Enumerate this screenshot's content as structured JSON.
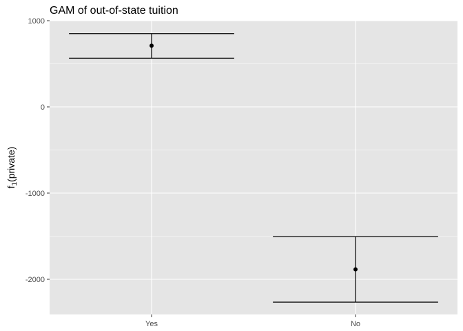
{
  "chart_data": {
    "type": "errorbar",
    "title": "GAM of out-of-state tuition",
    "xlabel": "",
    "ylabel": "f₁(private)",
    "ylabel_main": "f",
    "ylabel_sub": "1",
    "ylabel_rest": "(private)",
    "categories": [
      "Yes",
      "No"
    ],
    "points": [
      {
        "category": "Yes",
        "estimate": 710,
        "lower": 565,
        "upper": 850
      },
      {
        "category": "No",
        "estimate": -1885,
        "lower": -2265,
        "upper": -1505
      }
    ],
    "ylim": [
      -2400,
      1000
    ],
    "yticks": [
      1000,
      0,
      -1000,
      -2000
    ],
    "ytick_labels": [
      "1000",
      "0",
      "-1000",
      "-2000"
    ],
    "grid": true,
    "legend": "none",
    "colors": {
      "panel": "#e5e5e5",
      "grid": "#ffffff",
      "mark": "#000000",
      "tick_label": "#4d4d4d"
    }
  }
}
